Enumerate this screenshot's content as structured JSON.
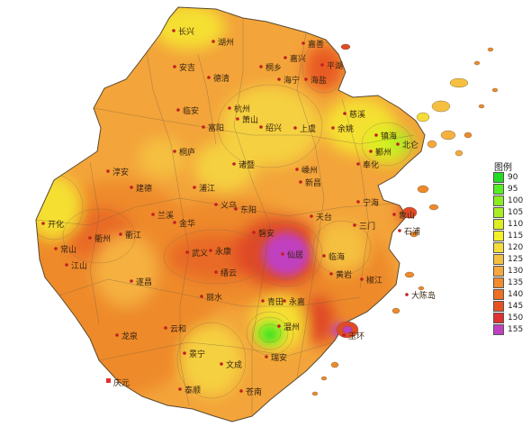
{
  "legend": {
    "title": "图例",
    "items": [
      {
        "label": "90",
        "color": "#22dd22"
      },
      {
        "label": "95",
        "color": "#55ee22"
      },
      {
        "label": "100",
        "color": "#88ee22"
      },
      {
        "label": "105",
        "color": "#aaee22"
      },
      {
        "label": "110",
        "color": "#ddee22"
      },
      {
        "label": "115",
        "color": "#f5f028"
      },
      {
        "label": "120",
        "color": "#f5dc3c"
      },
      {
        "label": "125",
        "color": "#f5c040"
      },
      {
        "label": "130",
        "color": "#f5a83c"
      },
      {
        "label": "135",
        "color": "#f28c2c"
      },
      {
        "label": "140",
        "color": "#ee7020"
      },
      {
        "label": "145",
        "color": "#e85020"
      },
      {
        "label": "150",
        "color": "#e03030"
      },
      {
        "label": "155",
        "color": "#c040c0"
      }
    ]
  },
  "cities": [
    {
      "id": "changxing",
      "name": "长兴"
    },
    {
      "id": "huzhou",
      "name": "湖州"
    },
    {
      "id": "jiashan",
      "name": "嘉善"
    },
    {
      "id": "pinghu",
      "name": "平湖"
    },
    {
      "id": "jiaxing",
      "name": "嘉兴"
    },
    {
      "id": "tongxiang",
      "name": "桐乡"
    },
    {
      "id": "anji",
      "name": "安吉"
    },
    {
      "id": "deqing",
      "name": "德清"
    },
    {
      "id": "haiyan",
      "name": "海盐"
    },
    {
      "id": "haining",
      "name": "海宁"
    },
    {
      "id": "lin_an",
      "name": "临安"
    },
    {
      "id": "hangzhou",
      "name": "杭州"
    },
    {
      "id": "xiaoshan",
      "name": "萧山"
    },
    {
      "id": "cixi",
      "name": "慈溪"
    },
    {
      "id": "yuyao",
      "name": "余姚"
    },
    {
      "id": "shaoxing",
      "name": "绍兴"
    },
    {
      "id": "shangyu",
      "name": "上虞"
    },
    {
      "id": "fuyang",
      "name": "富阳"
    },
    {
      "id": "zhenhai",
      "name": "镇海"
    },
    {
      "id": "beilun",
      "name": "北仑"
    },
    {
      "id": "yinzhou",
      "name": "鄞州"
    },
    {
      "id": "tonglu",
      "name": "桐庐"
    },
    {
      "id": "zhuji",
      "name": "诸暨"
    },
    {
      "id": "shengzhou",
      "name": "嵊州"
    },
    {
      "id": "fenghua",
      "name": "奉化"
    },
    {
      "id": "xinchang",
      "name": "新昌"
    },
    {
      "id": "chun_an",
      "name": "淳安"
    },
    {
      "id": "jiande",
      "name": "建德"
    },
    {
      "id": "pujiang",
      "name": "浦江"
    },
    {
      "id": "ninghai",
      "name": "宁海"
    },
    {
      "id": "xiangshan",
      "name": "象山"
    },
    {
      "id": "yiwu",
      "name": "义乌"
    },
    {
      "id": "dongyang",
      "name": "东阳"
    },
    {
      "id": "tiantai",
      "name": "天台"
    },
    {
      "id": "shipu",
      "name": "石浦"
    },
    {
      "id": "kaihua",
      "name": "开化"
    },
    {
      "id": "sanmen",
      "name": "三门"
    },
    {
      "id": "lanxi",
      "name": "兰溪"
    },
    {
      "id": "jinhua",
      "name": "金华"
    },
    {
      "id": "qujiang",
      "name": "衢江"
    },
    {
      "id": "quzhou",
      "name": "衢州"
    },
    {
      "id": "longyou",
      "name": "龙游"
    },
    {
      "id": "pan_an",
      "name": "磐安"
    },
    {
      "id": "xianju",
      "name": "仙居"
    },
    {
      "id": "linhai",
      "name": "临海"
    },
    {
      "id": "changshan",
      "name": "常山"
    },
    {
      "id": "wuyi",
      "name": "武义"
    },
    {
      "id": "yongkang",
      "name": "永康"
    },
    {
      "id": "jiangshan",
      "name": "江山"
    },
    {
      "id": "jinyun",
      "name": "缙云"
    },
    {
      "id": "huangyan",
      "name": "黄岩"
    },
    {
      "id": "jiaojiang",
      "name": "椒江"
    },
    {
      "id": "suichang",
      "name": "遂昌"
    },
    {
      "id": "dachendao",
      "name": "大陈岛"
    },
    {
      "id": "lishui",
      "name": "丽水"
    },
    {
      "id": "qingtian",
      "name": "青田"
    },
    {
      "id": "yongjia",
      "name": "永嘉"
    },
    {
      "id": "yuhuan",
      "name": "玉环"
    },
    {
      "id": "longquan",
      "name": "龙泉"
    },
    {
      "id": "yunhe",
      "name": "云和"
    },
    {
      "id": "wenzhou",
      "name": "温州"
    },
    {
      "id": "jingning",
      "name": "景宁"
    },
    {
      "id": "ruian",
      "name": "瑞安"
    },
    {
      "id": "wencheng",
      "name": "文成"
    },
    {
      "id": "qingyuan",
      "name": "庆元"
    },
    {
      "id": "taishun",
      "name": "泰顺"
    },
    {
      "id": "cangnan",
      "name": "苍南"
    }
  ]
}
